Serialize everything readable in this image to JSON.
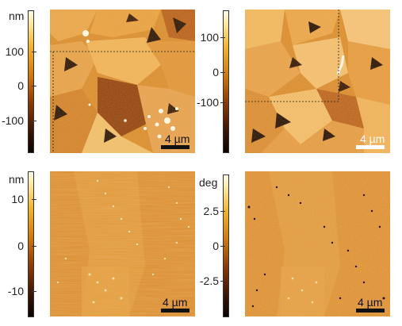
{
  "colorbar_height_top": {
    "unit": "nm",
    "ticks": [
      "100",
      "0",
      "-100"
    ]
  },
  "colorbar_height_top_right": {
    "ticks": [
      "100",
      "0",
      "-100"
    ]
  },
  "colorbar_height_bottom": {
    "unit": "nm",
    "ticks": [
      "10",
      "0",
      "-10"
    ]
  },
  "colorbar_phase_bottom": {
    "unit": "deg",
    "ticks": [
      "2.5",
      "0",
      "-2.5"
    ]
  },
  "panels": {
    "top_left": {
      "scale_label": "4 µm"
    },
    "top_right": {
      "scale_label": "4 µm"
    },
    "bottom_left": {
      "scale_label": "4 µm"
    },
    "bottom_right": {
      "scale_label": "4 µm"
    }
  }
}
